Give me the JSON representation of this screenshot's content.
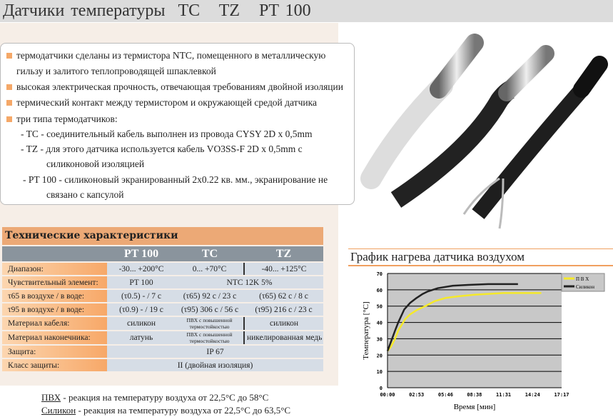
{
  "title": "Датчики температуры  TC   TZ   PT 100",
  "features": {
    "items": [
      "термодатчики сделаны из термистора NTC, помещенного в металлическую",
      "гильзу и залитого теплопроводящей шпаклевкой",
      "высокая электрическая прочность, отвечающая требованиям двойной изоляции",
      "термический контакт между термистором и окружающей средой датчика",
      "три типа термодатчиков:"
    ],
    "types": [
      "- TC - соединительный кабель выполнен из провода CYSY 2D x 0,5mm",
      "- TZ - для этого датчика используется кабель VO3SS-F  2D x 0,5mm с",
      "силиконовой изоляцией",
      "- PT 100 - силиконовый экранированный 2x0.22 кв. мм., экранирование не",
      "связано с капсулой"
    ],
    "bullet_color": "#f5a868"
  },
  "specs": {
    "title": "Технические характеристики",
    "columns": [
      "PT 100",
      "TC",
      "TZ"
    ],
    "rows": [
      {
        "label": "Диапазон:",
        "pt100": "-30... +200°C",
        "tc": "0... +70°C",
        "tz": "-40... +125°C"
      },
      {
        "label": "Чувствительный элемент:",
        "pt100": "PT 100",
        "tctz": "NTC 12K 5%"
      },
      {
        "label": "τ65 в воздухе / в воде:",
        "pt100": "(τ0.5) - / 7 c",
        "tc": "(τ65) 92 c / 23 c",
        "tz": "(τ65) 62 c / 8 c"
      },
      {
        "label": "τ95 в воздухе / в воде:",
        "pt100": "(τ0.9) - / 19 c",
        "tc": "(τ95) 306 c / 56 c",
        "tz": "(τ95) 216 c / 23 c"
      },
      {
        "label": "Материал кабеля:",
        "pt100": "силикон",
        "tc": "ПВХ с повышенной термостойкостью",
        "tz": "силикон"
      },
      {
        "label": "Материал наконечника:",
        "pt100": "латунь",
        "tc": "ПВХ с повышенной термостойкостью",
        "tz": "никелированная медь"
      },
      {
        "label": "Защита:",
        "all": "IP 67"
      },
      {
        "label": "Класс защиты:",
        "all": "II (двойная изоляция)"
      }
    ]
  },
  "notes": [
    {
      "term": "ПВХ",
      "text": " - реакция на температуру воздуха от 22,5°C до 58°C"
    },
    {
      "term": "Силикон",
      "text": " - реакция на температуру воздуха от 22,5°C до 63,5°C"
    }
  ],
  "chart_title": "График нагрева датчика воздухом",
  "chart_data": {
    "type": "line",
    "xlabel": "Время [мин]",
    "ylabel": "Температура [°C]",
    "ylim": [
      0,
      70
    ],
    "yticks": [
      0,
      10,
      20,
      30,
      40,
      50,
      60,
      70
    ],
    "xticks": [
      "00:00",
      "02:53",
      "05:46",
      "08:38",
      "11:31",
      "14:24",
      "17:17"
    ],
    "grid": true,
    "legend": "top-right",
    "series": [
      {
        "name": "П В Х",
        "color": "#f5e92a",
        "points": [
          [
            "00:00",
            22.5
          ],
          [
            "00:20",
            25
          ],
          [
            "00:45",
            30
          ],
          [
            "01:04",
            35
          ],
          [
            "01:45",
            42
          ],
          [
            "02:15",
            45
          ],
          [
            "02:53",
            47.5
          ],
          [
            "03:45",
            50
          ],
          [
            "04:40",
            53
          ],
          [
            "05:46",
            55
          ],
          [
            "07:00",
            56
          ],
          [
            "08:38",
            57
          ],
          [
            "10:00",
            57.5
          ],
          [
            "11:31",
            58
          ],
          [
            "15:16",
            58
          ]
        ]
      },
      {
        "name": "Силикон",
        "color": "#222222",
        "points": [
          [
            "00:00",
            22.5
          ],
          [
            "00:20",
            28
          ],
          [
            "00:45",
            35
          ],
          [
            "01:04",
            40
          ],
          [
            "01:40",
            48
          ],
          [
            "02:15",
            52
          ],
          [
            "02:53",
            55
          ],
          [
            "03:30",
            57.5
          ],
          [
            "04:00",
            59
          ],
          [
            "05:00",
            61
          ],
          [
            "06:30",
            62.5
          ],
          [
            "08:00",
            63
          ],
          [
            "10:00",
            63.5
          ],
          [
            "12:57",
            63.5
          ]
        ]
      }
    ]
  }
}
